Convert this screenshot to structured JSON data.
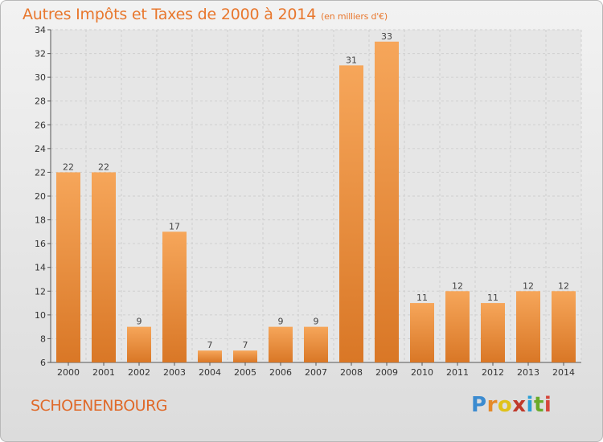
{
  "title": "Autres Impôts et Taxes de 2000 à 2014",
  "subtitle": "(en milliers d'€)",
  "commune": "SCHOENENBOURG",
  "brand": {
    "letters": [
      "P",
      "r",
      "o",
      "x",
      "i",
      "t",
      "i"
    ],
    "colors": [
      "#3b8bd0",
      "#e58a2a",
      "#e0c21a",
      "#c0392b",
      "#2a9fd6",
      "#6aaa2a",
      "#d6453a"
    ]
  },
  "colors": {
    "bar_top": "#f6a65a",
    "bar_bottom": "#d97726",
    "title": "#e8772d"
  },
  "chart_data": {
    "type": "bar",
    "categories": [
      "2000",
      "2001",
      "2002",
      "2003",
      "2004",
      "2005",
      "2006",
      "2007",
      "2008",
      "2009",
      "2010",
      "2011",
      "2012",
      "2013",
      "2014"
    ],
    "values": [
      22,
      22,
      9,
      17,
      7,
      7,
      9,
      9,
      31,
      33,
      11,
      12,
      11,
      12,
      12
    ],
    "ylim": [
      6,
      34
    ],
    "yticks": [
      6,
      8,
      10,
      12,
      14,
      16,
      18,
      20,
      22,
      24,
      26,
      28,
      30,
      32,
      34
    ],
    "grid": true
  }
}
